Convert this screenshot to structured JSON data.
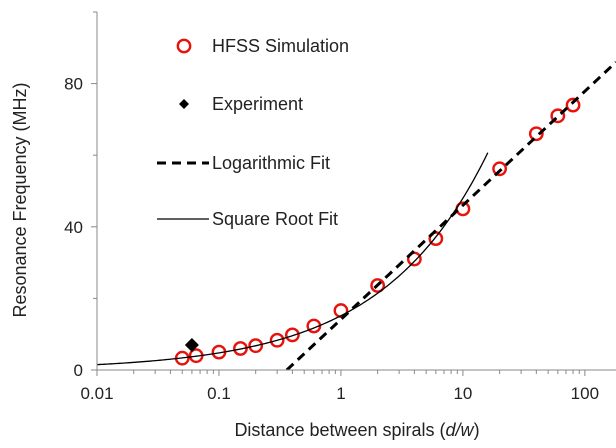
{
  "chart_data": {
    "type": "scatter",
    "x_scale": "log",
    "y_scale": "linear",
    "xlim": [
      0.01,
      180
    ],
    "ylim": [
      0,
      100
    ],
    "x_ticks": [
      0.01,
      0.1,
      1,
      10,
      100
    ],
    "x_tick_labels": [
      "0.01",
      "0.1",
      "1",
      "10",
      "100"
    ],
    "y_ticks": [
      0,
      40,
      80
    ],
    "y_tick_labels": [
      "0",
      "40",
      "80"
    ],
    "y_minor_ticks": [
      20,
      60,
      100
    ],
    "xlabel_prefix": "Distance between spirals (",
    "xlabel_italic": "d/w",
    "xlabel_suffix": ")",
    "ylabel": "Resonance Frequency (MHz)",
    "grid": false,
    "legend_position": "top-left",
    "legend": [
      {
        "label": "HFSS Simulation",
        "marker": "open-circle",
        "color": "#e8120c"
      },
      {
        "label": "Experiment",
        "marker": "filled-diamond",
        "color": "#000000"
      },
      {
        "label": "Logarithmic Fit",
        "marker": "dashed-line",
        "color": "#000000"
      },
      {
        "label": "Square Root Fit",
        "marker": "solid-line",
        "color": "#000000"
      }
    ],
    "series": [
      {
        "name": "HFSS Simulation",
        "kind": "scatter",
        "color": "#e8120c",
        "x": [
          0.05,
          0.065,
          0.1,
          0.15,
          0.2,
          0.3,
          0.4,
          0.6,
          1,
          2,
          4,
          6,
          10,
          20,
          40,
          60,
          80
        ],
        "y": [
          3.3,
          4.0,
          5.0,
          6.0,
          6.8,
          8.3,
          9.8,
          12.3,
          16.6,
          23.6,
          31.0,
          36.7,
          45.0,
          56.2,
          66.0,
          71.0,
          74.0
        ]
      },
      {
        "name": "Experiment",
        "kind": "scatter",
        "color": "#000000",
        "x": [
          0.06
        ],
        "y": [
          7.0
        ]
      },
      {
        "name": "Logarithmic Fit",
        "kind": "line",
        "style": "dashed",
        "color": "#000000",
        "x": [
          0.36,
          180
        ],
        "y": [
          0,
          86
        ]
      },
      {
        "name": "Square Root Fit",
        "kind": "line",
        "style": "solid",
        "color": "#000000",
        "x": [
          0.01,
          0.02,
          0.05,
          0.1,
          0.2,
          0.4,
          0.7,
          1,
          1.5,
          2,
          3,
          4,
          6,
          8,
          10,
          12,
          14,
          16
        ],
        "y": [
          1.5,
          2.1,
          3.4,
          4.8,
          6.8,
          9.6,
          12.7,
          15.2,
          18.6,
          21.5,
          26.3,
          30.4,
          37.2,
          43.0,
          48.0,
          52.6,
          56.8,
          60.7
        ]
      }
    ]
  },
  "colors": {
    "axis": "#888888",
    "text": "#222222",
    "sim": "#e8120c",
    "fit": "#000000"
  }
}
